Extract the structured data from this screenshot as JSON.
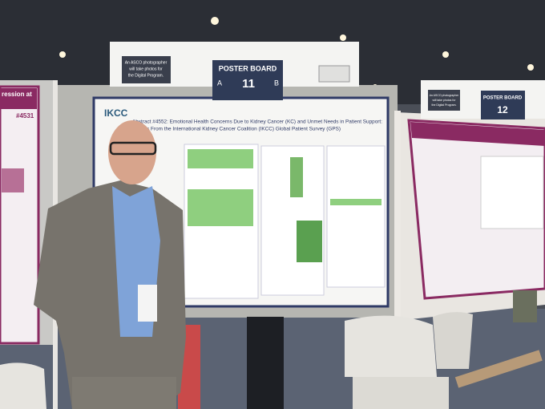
{
  "signs": [
    {
      "note_lines": [
        "An ASCO photographer",
        "will take photos for",
        "the Digital Program."
      ],
      "label": "POSTER BOARD",
      "side_a": "A",
      "number": "11",
      "side_b": "B"
    },
    {
      "note_lines": [
        "An ASCO photographer",
        "will take photos for",
        "the Digital Program."
      ],
      "label": "POSTER BOARD",
      "number": "12"
    }
  ],
  "posters": [
    {
      "logo": "IKCC",
      "title_lines": [
        "Abstract #4552: Emotional Health Concerns Due to Kidney Cancer (KC) and Unmet Needs in Patient Support:",
        "Results From the International Kidney Cancer Coalition (IKCC) Global Patient Survey (GPS)"
      ]
    },
    {
      "heading": "ression at",
      "abstract": "#4531"
    }
  ]
}
